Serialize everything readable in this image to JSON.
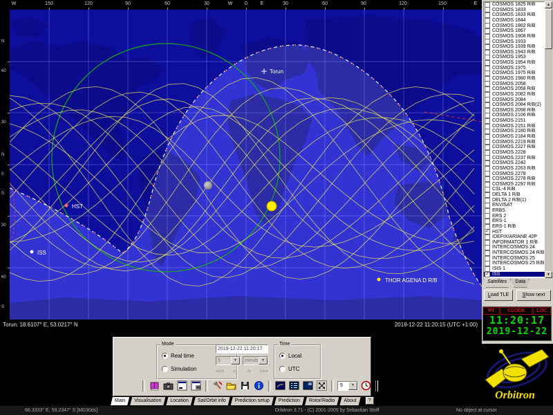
{
  "map": {
    "top_ruler": [
      "W",
      "150",
      "120",
      "90",
      "60",
      "30",
      "W",
      "0",
      "E",
      "30",
      "60",
      "90",
      "120",
      "150",
      "E"
    ],
    "left_ruler": [
      "N",
      "60",
      "30",
      "N",
      "0",
      "S",
      "30",
      "60",
      "S"
    ],
    "observer_status": "Torun: 18.6107° E, 53.0217° N",
    "datetime_status": "2019-12-22 11:20:15 (UTC +1:00)",
    "markers": {
      "observer": "Torun",
      "hst": "HST",
      "iss": "ISS",
      "thor": "THOR AGENA D R/B"
    }
  },
  "satlist": {
    "items": [
      {
        "name": "COSMOS 1825 R/B",
        "checked": false
      },
      {
        "name": "COSMOS 1833",
        "checked": false
      },
      {
        "name": "COSMOS 1833 R/B",
        "checked": false
      },
      {
        "name": "COSMOS 1844",
        "checked": false
      },
      {
        "name": "COSMOS 1862 R/B",
        "checked": false
      },
      {
        "name": "COSMOS 1867",
        "checked": false
      },
      {
        "name": "COSMOS 1908 R/B",
        "checked": false
      },
      {
        "name": "COSMOS 1933",
        "checked": false
      },
      {
        "name": "COSMOS 1939 R/B",
        "checked": false
      },
      {
        "name": "COSMOS 1943 R/B",
        "checked": false
      },
      {
        "name": "COSMOS 1953",
        "checked": false
      },
      {
        "name": "COSMOS 1954 R/B",
        "checked": false
      },
      {
        "name": "COSMOS 1975",
        "checked": false
      },
      {
        "name": "COSMOS 1975 R/B",
        "checked": false
      },
      {
        "name": "COSMOS 1980 R/B",
        "checked": false
      },
      {
        "name": "COSMOS 2058",
        "checked": false
      },
      {
        "name": "COSMOS 2058 R/B",
        "checked": false
      },
      {
        "name": "COSMOS 2082 R/B",
        "checked": false
      },
      {
        "name": "COSMOS 2084",
        "checked": false
      },
      {
        "name": "COSMOS 2084 R/B(2)",
        "checked": false
      },
      {
        "name": "COSMOS 2098 R/B",
        "checked": false
      },
      {
        "name": "COSMOS 2106 R/B",
        "checked": false
      },
      {
        "name": "COSMOS 2151",
        "checked": false
      },
      {
        "name": "COSMOS 2151 R/B",
        "checked": false
      },
      {
        "name": "COSMOS 2180 R/B",
        "checked": false
      },
      {
        "name": "COSMOS 2184 R/B",
        "checked": false
      },
      {
        "name": "COSMOS 2219 R/B",
        "checked": false
      },
      {
        "name": "COSMOS 2227 R/B",
        "checked": false
      },
      {
        "name": "COSMOS 2228",
        "checked": false
      },
      {
        "name": "COSMOS 2237 R/B",
        "checked": false
      },
      {
        "name": "COSMOS 2242",
        "checked": false
      },
      {
        "name": "COSMOS 2263 R/B",
        "checked": false
      },
      {
        "name": "COSMOS 2278",
        "checked": false
      },
      {
        "name": "COSMOS 2278 R/B",
        "checked": false
      },
      {
        "name": "COSMOS 2297 R/B",
        "checked": false
      },
      {
        "name": "CSL-4 R/B",
        "checked": false
      },
      {
        "name": "DELTA 1 R/B",
        "checked": false
      },
      {
        "name": "DELTA 2 R/B(1)",
        "checked": false
      },
      {
        "name": "ENVISAT",
        "checked": false
      },
      {
        "name": "ERBS",
        "checked": false
      },
      {
        "name": "ERS 2",
        "checked": false
      },
      {
        "name": "ERS-1",
        "checked": false
      },
      {
        "name": "ERS-1 R/B",
        "checked": false
      },
      {
        "name": "HST",
        "checked": true
      },
      {
        "name": "IDEFIX/ARIANE 42P",
        "checked": false
      },
      {
        "name": "INFORMATOR 1 R/B",
        "checked": false
      },
      {
        "name": "INTERCOSMOS 24",
        "checked": false
      },
      {
        "name": "INTERCOSMOS 24 R/B",
        "checked": false
      },
      {
        "name": "INTERCOSMOS 25",
        "checked": false
      },
      {
        "name": "INTERCOSMOS 25 R/B",
        "checked": false
      },
      {
        "name": "ISIS 1",
        "checked": false
      },
      {
        "name": "ISS",
        "checked": true,
        "selected": true
      }
    ],
    "tabs": [
      "Satellites",
      "Data"
    ],
    "load_button": "Load TLE",
    "next_button": "Show next"
  },
  "clock": {
    "tabs": [
      "RT",
      "CLOCK",
      "LOC"
    ],
    "time": "11:20:17",
    "date": "2019-12-22"
  },
  "logo_text": "Orbitron",
  "panel": {
    "mode_label": "Mode",
    "mode_options": [
      "Real time",
      "Simulation"
    ],
    "mode_selected": "Real time",
    "datetime_value": "2019-12-22 11:20:17",
    "step_value": "5",
    "step_unit": "minutes",
    "arrows": [
      "<<<",
      "<-",
      "->",
      ">>>"
    ],
    "time_label": "Time",
    "time_options": [
      "Local",
      "UTC"
    ],
    "time_selected": "Local",
    "zoom_value": "5"
  },
  "main_tabs": [
    "Main",
    "Visualisation",
    "Location",
    "Sat/Orbit info",
    "Prediction setup",
    "Prediction",
    "Rotor/Radio",
    "About"
  ],
  "active_main_tab": "Main",
  "help_button": "?",
  "statusbar": {
    "left": "66.3333° E, 59.2347° S [MD30ds]",
    "center": "Orbitron 3.71 - (C) 2001-2005 by Sebastian Stoff",
    "right": "No object at cursor"
  },
  "colors": {
    "night_ocean": "#0e0e9c",
    "night_land": "#0b0b8c",
    "day_ocean": "#3333d4",
    "day_land": "#2c2ca6",
    "track_yellow": "#e2e25c",
    "coverage_green": "#15aa15",
    "clock_green": "#00e000",
    "clock_red": "#e01010",
    "brand_yellow": "#f2e000"
  }
}
